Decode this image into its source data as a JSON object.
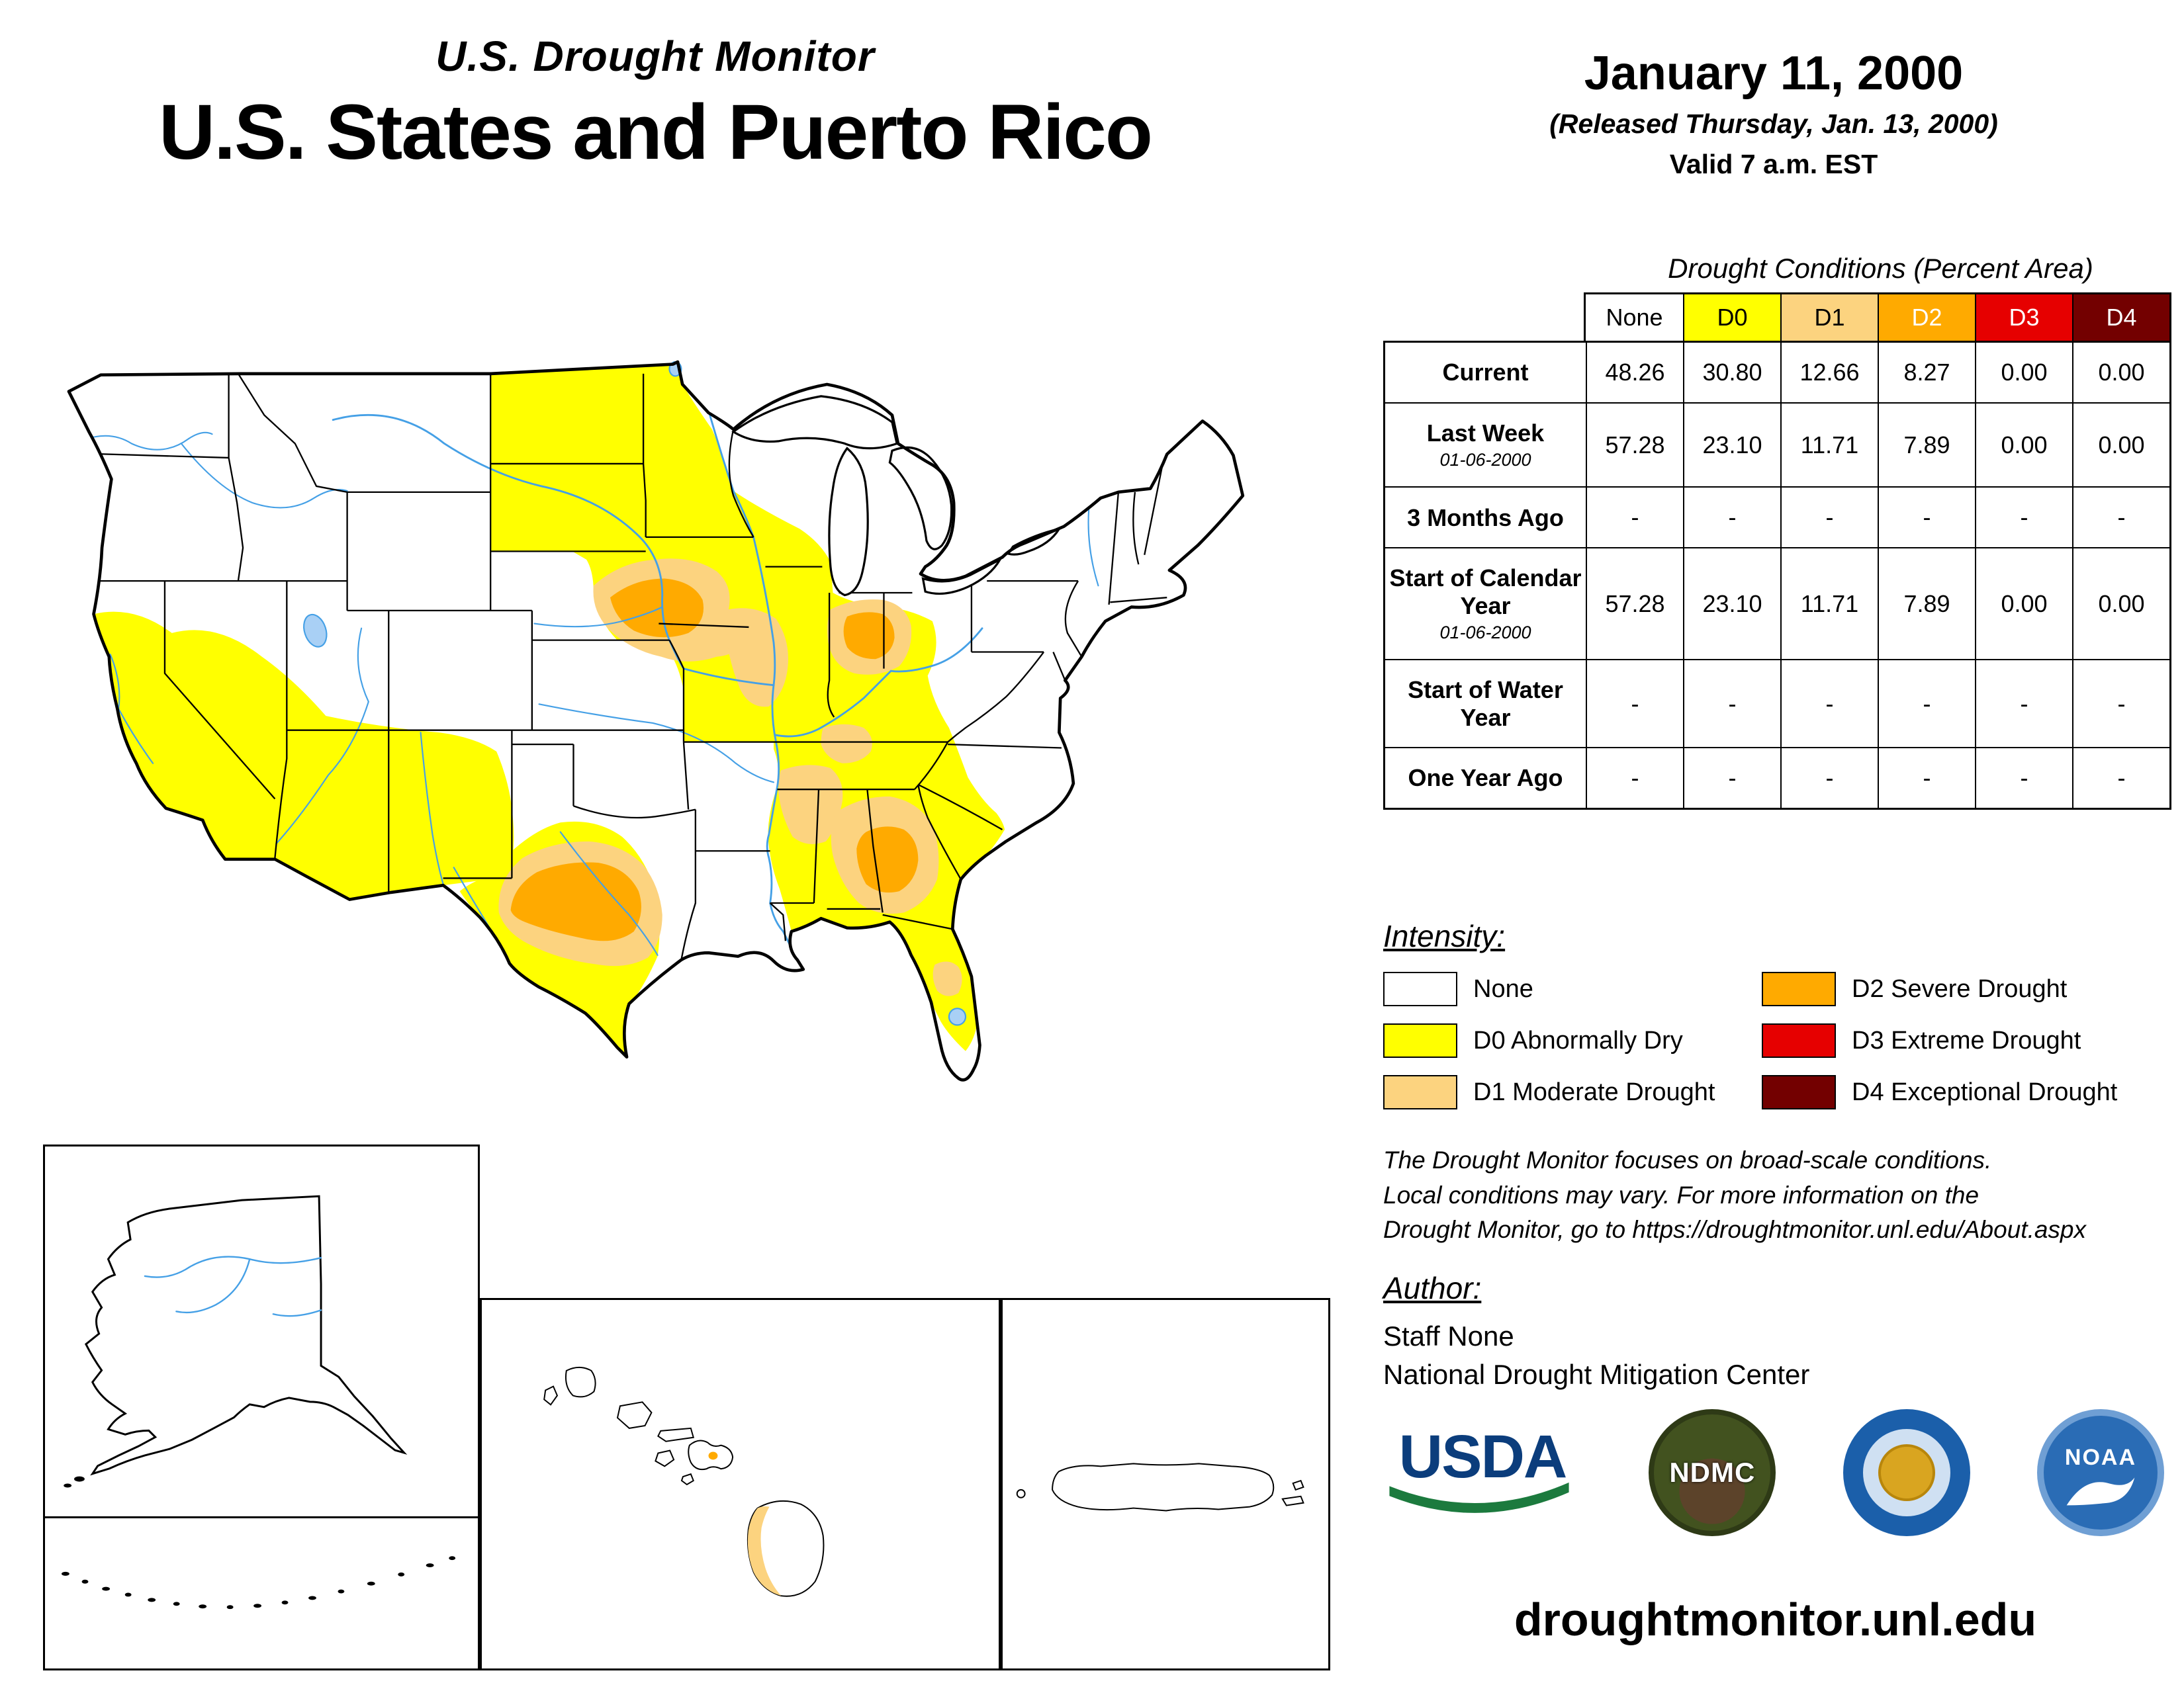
{
  "header": {
    "monitor_title": "U.S. Drought Monitor",
    "map_title": "U.S. States and Puerto Rico"
  },
  "date_block": {
    "date": "January 11, 2000",
    "released": "(Released Thursday, Jan. 13, 2000)",
    "valid": "Valid 7 a.m. EST"
  },
  "table": {
    "title": "Drought Conditions (Percent Area)",
    "columns": [
      "None",
      "D0",
      "D1",
      "D2",
      "D3",
      "D4"
    ],
    "column_colors": [
      "#ffffff",
      "#ffff00",
      "#fcd37f",
      "#ffaa00",
      "#e60000",
      "#730000"
    ],
    "column_text_colors": [
      "#000000",
      "#000000",
      "#000000",
      "#ffffff",
      "#ffffff",
      "#ffffff"
    ],
    "rows": [
      {
        "label": "Current",
        "sublabel": "",
        "values": [
          "48.26",
          "30.80",
          "12.66",
          "8.27",
          "0.00",
          "0.00"
        ]
      },
      {
        "label": "Last Week",
        "sublabel": "01-06-2000",
        "values": [
          "57.28",
          "23.10",
          "11.71",
          "7.89",
          "0.00",
          "0.00"
        ]
      },
      {
        "label": "3 Months Ago",
        "sublabel": "",
        "values": [
          "-",
          "-",
          "-",
          "-",
          "-",
          "-"
        ]
      },
      {
        "label": "Start of Calendar Year",
        "sublabel": "01-06-2000",
        "values": [
          "57.28",
          "23.10",
          "11.71",
          "7.89",
          "0.00",
          "0.00"
        ]
      },
      {
        "label": "Start of Water Year",
        "sublabel": "",
        "values": [
          "-",
          "-",
          "-",
          "-",
          "-",
          "-"
        ]
      },
      {
        "label": "One Year Ago",
        "sublabel": "",
        "values": [
          "-",
          "-",
          "-",
          "-",
          "-",
          "-"
        ]
      }
    ]
  },
  "legend": {
    "title": "Intensity:",
    "items": [
      {
        "code": "none",
        "label": "None",
        "color": "#ffffff"
      },
      {
        "code": "d0",
        "label": "D0 Abnormally Dry",
        "color": "#ffff00"
      },
      {
        "code": "d1",
        "label": "D1 Moderate Drought",
        "color": "#fcd37f"
      },
      {
        "code": "d2",
        "label": "D2 Severe Drought",
        "color": "#ffaa00"
      },
      {
        "code": "d3",
        "label": "D3 Extreme Drought",
        "color": "#e60000"
      },
      {
        "code": "d4",
        "label": "D4 Exceptional Drought",
        "color": "#730000"
      }
    ]
  },
  "disclaimer_lines": [
    "The Drought Monitor focuses on broad-scale conditions.",
    "Local conditions may vary. For more information on the",
    "Drought Monitor, go to https://droughtmonitor.unl.edu/About.aspx"
  ],
  "author": {
    "heading": "Author:",
    "name": "Staff None",
    "org": "National Drought Mitigation Center"
  },
  "logos": {
    "usda": {
      "text": "USDA"
    },
    "ndmc": {
      "text": "NDMC"
    },
    "doc": {
      "name": "U.S. Department of Commerce"
    },
    "noaa": {
      "text": "NOAA"
    }
  },
  "footer": {
    "url": "droughtmonitor.unl.edu"
  }
}
